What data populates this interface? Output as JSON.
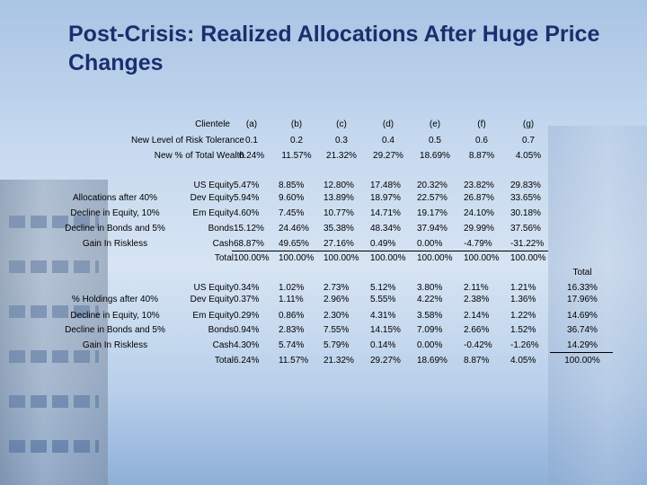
{
  "title": "Post-Crisis: Realized Allocations After Huge Price Changes",
  "header": {
    "clientele_label": "Clientele",
    "risk_label": "New Level of Risk Tolerance",
    "wealth_label": "New % of Total Wealth",
    "columns": [
      "(a)",
      "(b)",
      "(c)",
      "(d)",
      "(e)",
      "(f)",
      "(g)"
    ],
    "risk_values": [
      "0.1",
      "0.2",
      "0.3",
      "0.4",
      "0.5",
      "0.6",
      "0.7"
    ],
    "wealth_values": [
      "6.24%",
      "11.57%",
      "21.32%",
      "29.27%",
      "18.69%",
      "8.87%",
      "4.05%"
    ]
  },
  "section1": {
    "notes": [
      "Allocations after 40%",
      "Decline in Equity, 10%",
      "Decline in Bonds and 5%",
      "Gain In Riskless"
    ],
    "rows": [
      {
        "label": "US Equity",
        "values": [
          "5.47%",
          "8.85%",
          "12.80%",
          "17.48%",
          "20.32%",
          "23.82%",
          "29.83%"
        ]
      },
      {
        "label": "Dev Equity",
        "values": [
          "5.94%",
          "9.60%",
          "13.89%",
          "18.97%",
          "22.57%",
          "26.87%",
          "33.65%"
        ]
      },
      {
        "label": "Em Equity",
        "values": [
          "4.60%",
          "7.45%",
          "10.77%",
          "14.71%",
          "19.17%",
          "24.10%",
          "30.18%"
        ]
      },
      {
        "label": "Bonds",
        "values": [
          "15.12%",
          "24.46%",
          "35.38%",
          "48.34%",
          "37.94%",
          "29.99%",
          "37.56%"
        ]
      },
      {
        "label": "Cash",
        "values": [
          "68.87%",
          "49.65%",
          "27.16%",
          "0.49%",
          "0.00%",
          "-4.79%",
          "-31.22%"
        ]
      },
      {
        "label": "Total",
        "values": [
          "100.00%",
          "100.00%",
          "100.00%",
          "100.00%",
          "100.00%",
          "100.00%",
          "100.00%"
        ]
      }
    ]
  },
  "section2": {
    "total_header": "Total",
    "notes": [
      "% Holdings after 40%",
      "Decline in Equity, 10%",
      "Decline in Bonds and 5%",
      "Gain In Riskless"
    ],
    "rows": [
      {
        "label": "US Equity",
        "values": [
          "0.34%",
          "1.02%",
          "2.73%",
          "5.12%",
          "3.80%",
          "2.11%",
          "1.21%"
        ],
        "total": "16.33%"
      },
      {
        "label": "Dev Equity",
        "values": [
          "0.37%",
          "1.11%",
          "2.96%",
          "5.55%",
          "4.22%",
          "2.38%",
          "1.36%"
        ],
        "total": "17.96%"
      },
      {
        "label": "Em Equity",
        "values": [
          "0.29%",
          "0.86%",
          "2.30%",
          "4.31%",
          "3.58%",
          "2.14%",
          "1.22%"
        ],
        "total": "14.69%"
      },
      {
        "label": "Bonds",
        "values": [
          "0.94%",
          "2.83%",
          "7.55%",
          "14.15%",
          "7.09%",
          "2.66%",
          "1.52%"
        ],
        "total": "36.74%"
      },
      {
        "label": "Cash",
        "values": [
          "4.30%",
          "5.74%",
          "5.79%",
          "0.14%",
          "0.00%",
          "-0.42%",
          "-1.26%"
        ],
        "total": "14.29%"
      },
      {
        "label": "Total",
        "values": [
          "6.24%",
          "11.57%",
          "21.32%",
          "29.27%",
          "18.69%",
          "8.87%",
          "4.05%"
        ],
        "total": "100.00%"
      }
    ]
  }
}
